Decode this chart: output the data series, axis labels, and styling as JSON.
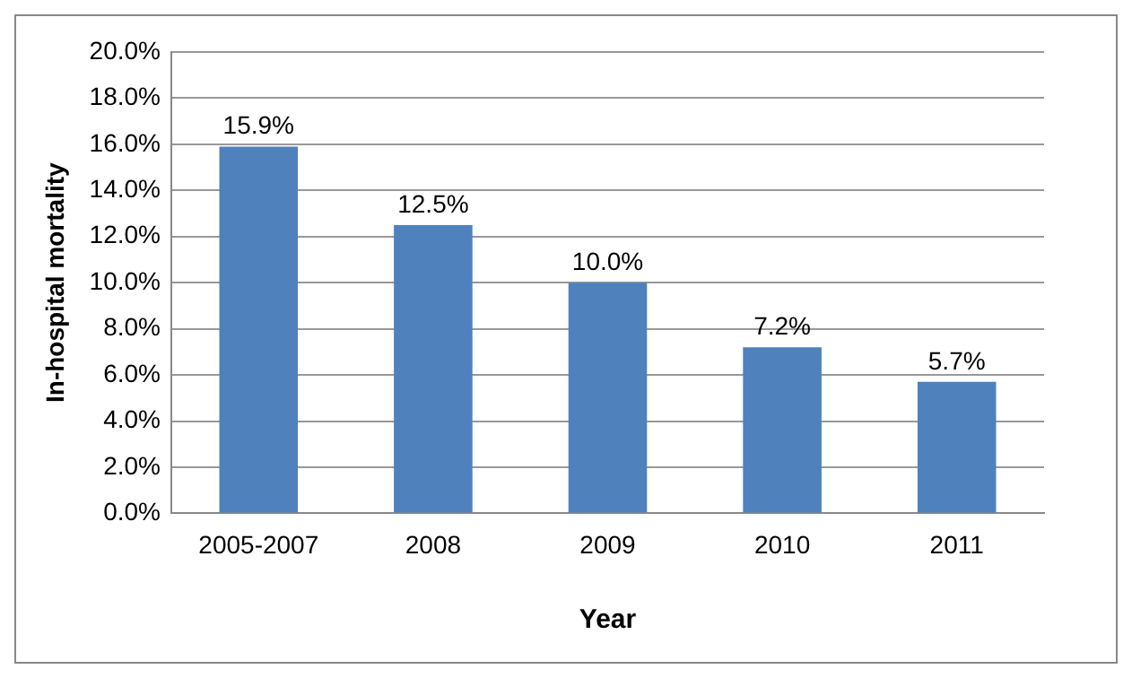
{
  "chart_data": {
    "type": "bar",
    "xlabel": "Year",
    "ylabel": "In-hospital mortality",
    "categories": [
      "2005-2007",
      "2008",
      "2009",
      "2010",
      "2011"
    ],
    "values": [
      15.9,
      12.5,
      10.0,
      7.2,
      5.7
    ],
    "value_labels": [
      "15.9%",
      "12.5%",
      "10.0%",
      "7.2%",
      "5.7%"
    ],
    "color": "#4f81bd",
    "ylim": [
      0,
      20
    ],
    "yticks": [
      {
        "value": 0,
        "label": "0.0%"
      },
      {
        "value": 2,
        "label": "2.0%"
      },
      {
        "value": 4,
        "label": "4.0%"
      },
      {
        "value": 6,
        "label": "6.0%"
      },
      {
        "value": 8,
        "label": "8.0%"
      },
      {
        "value": 10,
        "label": "10.0%"
      },
      {
        "value": 12,
        "label": "12.0%"
      },
      {
        "value": 14,
        "label": "14.0%"
      },
      {
        "value": 16,
        "label": "16.0%"
      },
      {
        "value": 18,
        "label": "18.0%"
      },
      {
        "value": 20,
        "label": "20.0%"
      }
    ],
    "grid": "y",
    "legend": false
  }
}
